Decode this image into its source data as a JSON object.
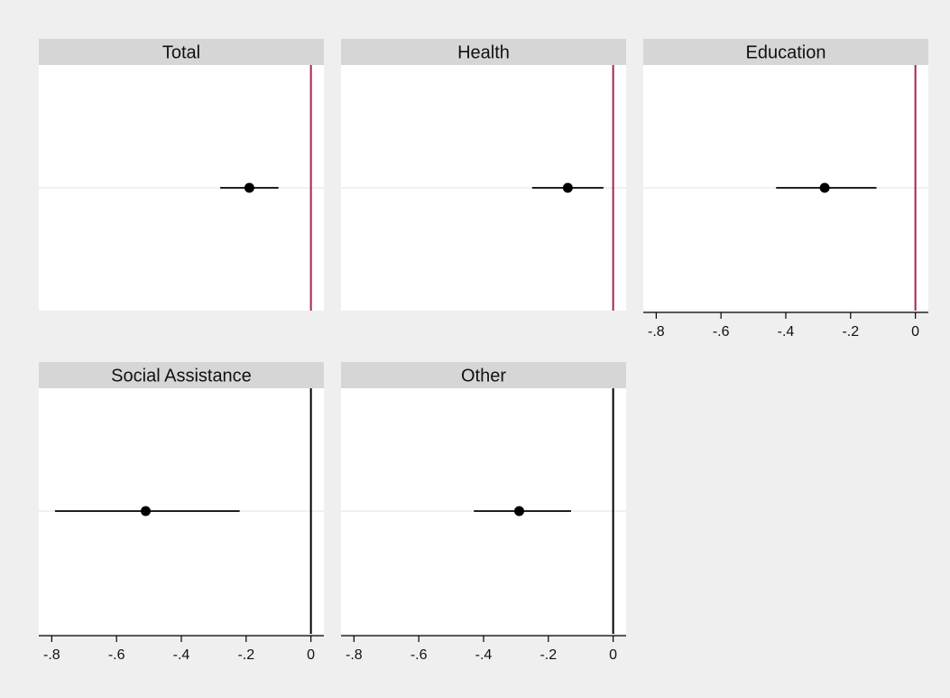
{
  "colors": {
    "background": "#efefef",
    "plot_area": "#ffffff",
    "title_strip": "#d6d6d6",
    "marker": "#000000",
    "ci_line": "#000000",
    "row_gridline": "#e6e6e6",
    "ref_line_top": "#a8234a",
    "ref_line_bottom": "#000000",
    "axis": "#000000",
    "text": "#111111"
  },
  "chart_data": {
    "type": "scatter",
    "subtype": "coefficient-plot-with-confidence-intervals",
    "xlim": [
      -0.84,
      0.04
    ],
    "xticks": [
      -0.8,
      -0.6,
      -0.4,
      -0.2,
      0
    ],
    "xtick_labels": [
      "-.8",
      "-.6",
      "-.4",
      "-.2",
      "0"
    ],
    "reference_line": 0,
    "grid": "horizontal line through each estimate",
    "panels": [
      {
        "title": "Total",
        "estimate": -0.19,
        "ci_low": -0.28,
        "ci_high": -0.1,
        "ref_color": "top",
        "show_x_axis": false
      },
      {
        "title": "Health",
        "estimate": -0.14,
        "ci_low": -0.25,
        "ci_high": -0.03,
        "ref_color": "top",
        "show_x_axis": false
      },
      {
        "title": "Education",
        "estimate": -0.28,
        "ci_low": -0.43,
        "ci_high": -0.12,
        "ref_color": "top",
        "show_x_axis": true
      },
      {
        "title": "Social Assistance",
        "estimate": -0.51,
        "ci_low": -0.79,
        "ci_high": -0.22,
        "ref_color": "bottom",
        "show_x_axis": true
      },
      {
        "title": "Other",
        "estimate": -0.29,
        "ci_low": -0.43,
        "ci_high": -0.13,
        "ref_color": "bottom",
        "show_x_axis": true
      }
    ]
  }
}
